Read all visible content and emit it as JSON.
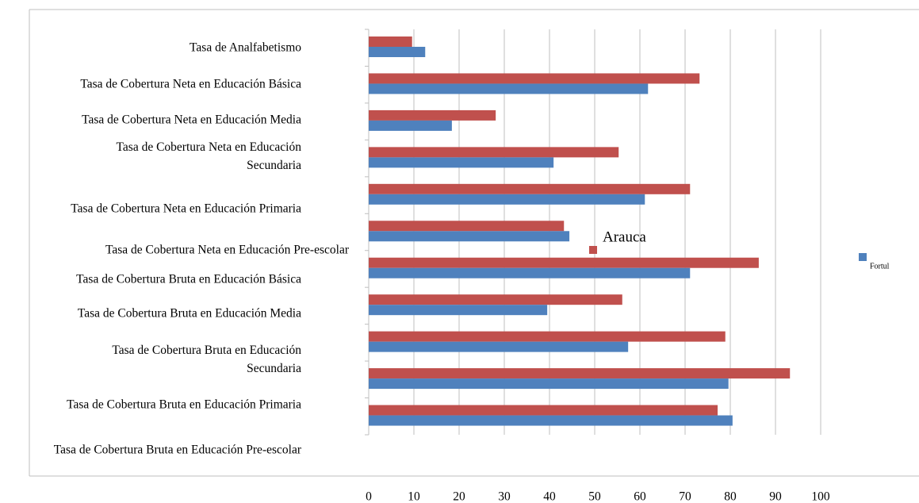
{
  "chart_data": {
    "type": "barh",
    "categories": [
      "Tasa de Analfabetismo",
      "Tasa de Cobertura Neta en Educación Básica",
      "Tasa de Cobertura Neta en Educación Media",
      "Tasa de Cobertura Neta en Educación Secundaria",
      "Tasa de Cobertura Neta en Educación Primaria",
      "Tasa de Cobertura Neta en Educación Pre-escolar",
      "Tasa de Cobertura Bruta en Educación Básica",
      "Tasa de Cobertura Bruta en Educación Media",
      "Tasa de Cobertura Bruta en Educación Secundaria",
      "Tasa de Cobertura Bruta en Educación Primaria",
      "Tasa de Cobertura Bruta en Educación Pre-escolar"
    ],
    "series": [
      {
        "name": "Arauca",
        "color": "#c0504d",
        "values": [
          9.6,
          73.2,
          28.1,
          55.3,
          71.1,
          43.2,
          86.3,
          56.1,
          78.9,
          93.2,
          77.2
        ]
      },
      {
        "name": "Fortul",
        "color": "#4f81bd",
        "values": [
          12.5,
          61.8,
          18.4,
          40.9,
          61.1,
          44.4,
          71.1,
          39.5,
          57.4,
          79.6,
          80.5
        ]
      }
    ],
    "xlim": [
      0,
      100
    ],
    "xticks": [
      0,
      10,
      20,
      30,
      40,
      50,
      60,
      70,
      80,
      90,
      100
    ],
    "grid": true,
    "legend": "right"
  }
}
